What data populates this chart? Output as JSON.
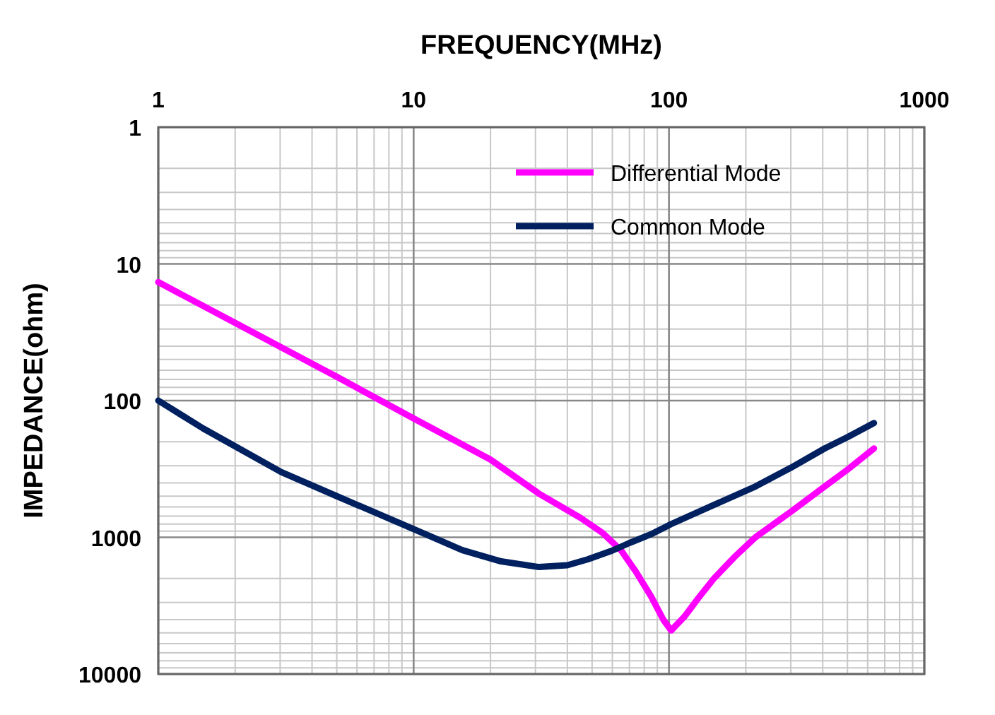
{
  "chart_data": {
    "type": "line",
    "xlabel": "FREQUENCY(MHz)",
    "ylabel": "IMPEDANCE(ohm)",
    "log": "xy",
    "grid": true,
    "legend": "top right",
    "xlim": [
      1,
      1000
    ],
    "xticks": [
      1,
      10,
      100,
      1000
    ],
    "ylim": [
      10000,
      1
    ],
    "yticks": [
      1,
      10,
      100,
      1000,
      10000
    ],
    "series": [
      {
        "name": "Differential Mode",
        "color": "#ff00ff",
        "x": [
          1,
          2,
          5,
          10,
          20,
          31,
          45,
          55,
          65,
          74,
          85,
          95,
          102,
          115,
          130,
          150,
          180,
          218,
          300,
          407,
          500,
          635
        ],
        "values": [
          13.6,
          27,
          67,
          135,
          270,
          480,
          720,
          930,
          1250,
          1770,
          2700,
          4000,
          4800,
          3800,
          2800,
          2000,
          1400,
          1000,
          650,
          425,
          320,
          224
        ]
      },
      {
        "name": "Common Mode",
        "color": "#002060",
        "x": [
          1,
          1.5,
          2.07,
          3.03,
          5,
          10,
          15.5,
          22,
          31,
          40,
          48,
          60,
          70,
          85,
          102,
          150,
          218,
          300,
          407,
          500,
          635
        ],
        "values": [
          100,
          160,
          224,
          333,
          500,
          870,
          1240,
          1500,
          1650,
          1600,
          1450,
          1250,
          1100,
          950,
          800,
          580,
          425,
          310,
          224,
          185,
          146
        ]
      }
    ]
  }
}
